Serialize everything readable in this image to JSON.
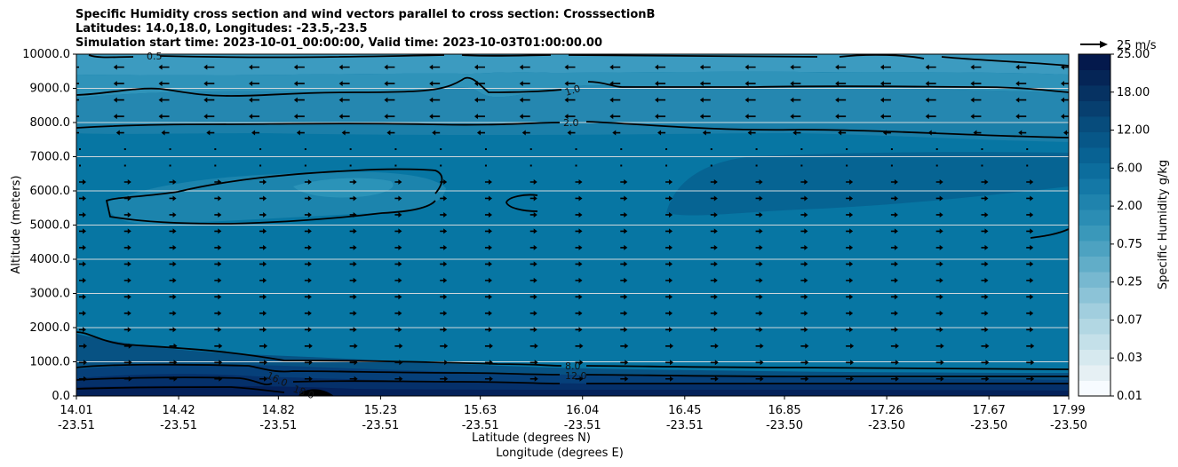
{
  "title_lines": [
    "Specific Humidity cross section and wind vectors parallel to cross section: CrosssectionB",
    "Latitudes: 14.0,18.0, Longitudes: -23.5,-23.5",
    "Simulation start time: 2023-10-01_00:00:00, Valid time: 2023-10-03T01:00:00.00"
  ],
  "chart_data": {
    "type": "heatmap",
    "subtype": "vertical cross-section (filled contours + contour lines + wind vectors)",
    "ylabel": "Altitude (meters)",
    "xlabel_lat": "Latitude (degrees N)",
    "xlabel_lon": "Longitude (degrees E)",
    "ylim": [
      0,
      10000
    ],
    "yticks": [
      "0.0",
      "1000.0",
      "2000.0",
      "3000.0",
      "4000.0",
      "5000.0",
      "6000.0",
      "7000.0",
      "8000.0",
      "9000.0",
      "10000.0"
    ],
    "ytick_values": [
      0,
      1000,
      2000,
      3000,
      4000,
      5000,
      6000,
      7000,
      8000,
      9000,
      10000
    ],
    "xticks_lat": [
      "14.01",
      "14.42",
      "14.82",
      "15.23",
      "15.63",
      "16.04",
      "16.45",
      "16.85",
      "17.26",
      "17.67",
      "17.99"
    ],
    "xticks_lon": [
      "-23.51",
      "-23.51",
      "-23.51",
      "-23.51",
      "-23.51",
      "-23.51",
      "-23.51",
      "-23.50",
      "-23.50",
      "-23.50",
      "-23.50"
    ],
    "xtick_lat_values": [
      14.01,
      14.42,
      14.82,
      15.23,
      15.63,
      16.04,
      16.45,
      16.85,
      17.26,
      17.67,
      17.99
    ],
    "xlim_lat": [
      14.01,
      17.99
    ],
    "grid": "horizontal",
    "colorbar": {
      "label": "Specific Humidity g/kg",
      "tick_labels": [
        "0.01",
        "0.03",
        "0.07",
        "0.25",
        "0.75",
        "2.00",
        "6.00",
        "12.00",
        "18.00",
        "25.00"
      ],
      "colors": [
        "#f7fbff",
        "#e6f0f4",
        "#d6e9ef",
        "#c4e0e9",
        "#b2d7e3",
        "#a1cede",
        "#8cc3d7",
        "#77b8d0",
        "#61adc8",
        "#4da2c1",
        "#3a98ba",
        "#2b8db4",
        "#1f83ad",
        "#1478a6",
        "#0c6d9d",
        "#086293",
        "#075788",
        "#074c7c",
        "#073f6f",
        "#063262",
        "#052556",
        "#04194c"
      ]
    },
    "contour_lines": [
      {
        "label": "0.5",
        "lat_values": [
          14.3,
          15.5,
          16.0,
          17.5
        ],
        "altitude": 9950
      },
      {
        "label": "1.0",
        "lat_values": [
          15.9
        ],
        "altitude": 8800
      },
      {
        "label": "2.0",
        "lat_values": [
          15.9,
          15.3,
          15.9,
          17.9
        ],
        "altitude": 7900
      },
      {
        "label": "4.0",
        "lat_values": [
          15.9
        ],
        "altitude": 900
      },
      {
        "label": "8.0",
        "lat_values": [
          15.9
        ],
        "altitude": 580
      },
      {
        "label": "12.0",
        "lat_values": [
          14.9
        ],
        "altitude": 430
      },
      {
        "label": "16.0",
        "lat_values": [
          15.0
        ],
        "altitude": 130
      },
      {
        "label": "18.0",
        "lat_values": [
          15.9
        ],
        "altitude": 280
      }
    ],
    "wind_vectors": {
      "reference_label": "25 m/s",
      "reference_speed": 25,
      "upper_levels_direction": "westward (toward lower latitude)",
      "lower_levels_direction": "eastward (toward higher latitude)"
    }
  }
}
